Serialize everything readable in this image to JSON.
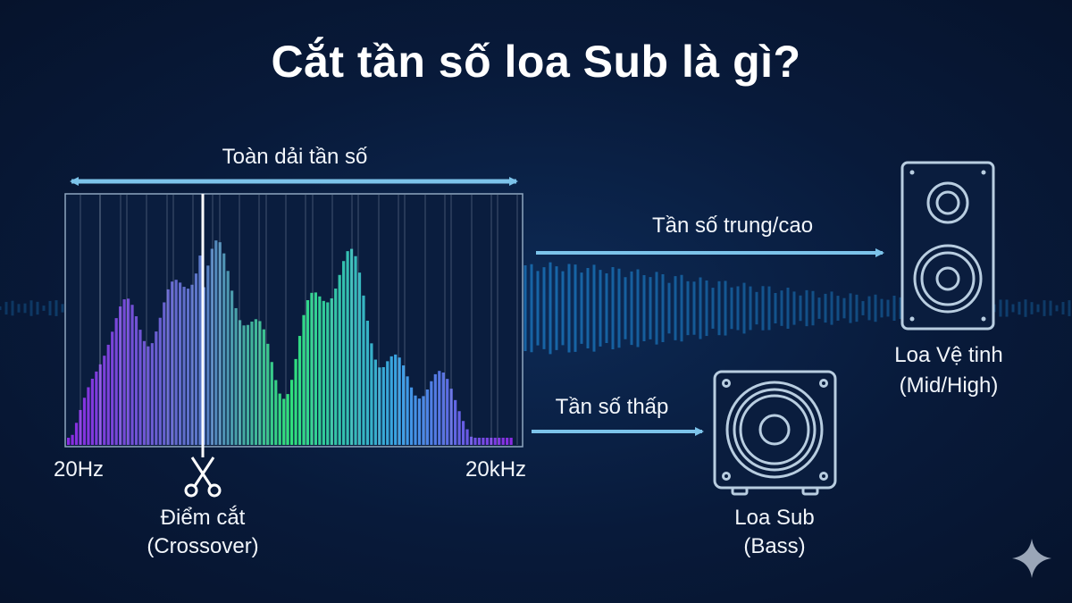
{
  "title": "Cắt tần số loa Sub là gì?",
  "full_range_label": "Toàn dải tần số",
  "spectrum": {
    "min_label": "20Hz",
    "max_label": "20kHz",
    "crossover_label_line1": "Điểm cắt",
    "crossover_label_line2": "(Crossover)"
  },
  "high_path": {
    "label": "Tần số trung/cao",
    "speaker_line1": "Loa Vệ tinh",
    "speaker_line2": "(Mid/High)"
  },
  "low_path": {
    "label": "Tần số thấp",
    "speaker_line1": "Loa Sub",
    "speaker_line2": "(Bass)"
  },
  "colors": {
    "background": "#081a3a",
    "arrow": "#7cc3ea",
    "outline": "#b8cde0",
    "spectrum_purple": "#8a2be2",
    "spectrum_green": "#2fe07a",
    "spectrum_blue": "#3a7be0"
  },
  "icons": [
    "scissors-icon",
    "bookshelf-speaker-icon",
    "subwoofer-icon",
    "sparkle-icon"
  ]
}
